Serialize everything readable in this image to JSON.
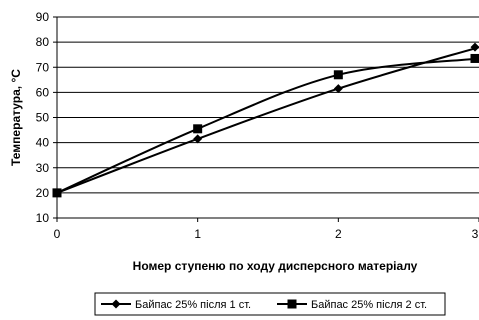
{
  "chart_data": {
    "type": "line",
    "title": "",
    "xlabel": "Номер ступеню по ходу дисперсного матеріалу",
    "ylabel": "Температура, °С",
    "x": [
      0,
      1,
      2,
      3
    ],
    "x_ticks": [
      "0",
      "1",
      "2",
      "3"
    ],
    "xlim": [
      0,
      3
    ],
    "ylim": [
      10,
      90
    ],
    "y_ticks": [
      "10",
      "20",
      "30",
      "40",
      "50",
      "60",
      "70",
      "80",
      "90"
    ],
    "grid": "horizontal",
    "legend_position": "bottom",
    "series": [
      {
        "name": "Байпас  25% після  1 ст.",
        "marker": "diamond",
        "values": [
          20,
          41.5,
          61.5,
          78
        ]
      },
      {
        "name": "Байпас  25% після  2 ст.",
        "marker": "square",
        "values": [
          20,
          45.5,
          67,
          73.5
        ]
      }
    ],
    "colors": {
      "line": "#000000",
      "grid": "#000000",
      "background": "#ffffff"
    }
  }
}
